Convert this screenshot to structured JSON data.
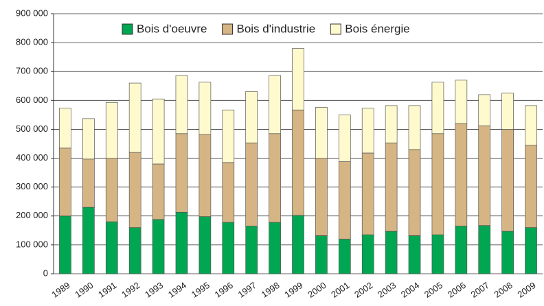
{
  "chart_data": {
    "type": "stacked_bar",
    "categories": [
      "1989",
      "1990",
      "1991",
      "1992",
      "1993",
      "1994",
      "1995",
      "1996",
      "1997",
      "1998",
      "1999",
      "2000",
      "2001",
      "2002",
      "2003",
      "2004",
      "2005",
      "2006",
      "2007",
      "2008",
      "2009"
    ],
    "series": [
      {
        "name": "Bois d'oeuvre",
        "color": "#00a651",
        "values": [
          200000,
          230000,
          180000,
          160000,
          188000,
          213000,
          198000,
          178000,
          165000,
          178000,
          202000,
          132000,
          120000,
          135000,
          147000,
          132000,
          135000,
          165000,
          167000,
          147000,
          160000
        ]
      },
      {
        "name": "Bois d'industrie",
        "color": "#d5b583",
        "values": [
          235000,
          167000,
          220000,
          260000,
          192000,
          272000,
          284000,
          207000,
          288000,
          307000,
          365000,
          268000,
          268000,
          283000,
          306000,
          298000,
          350000,
          355000,
          345000,
          353000,
          285000
        ]
      },
      {
        "name": "Bois énergie",
        "color": "#fffacd",
        "values": [
          138000,
          140000,
          193000,
          240000,
          225000,
          201000,
          181000,
          182000,
          178000,
          201000,
          213000,
          176000,
          162000,
          155000,
          129000,
          152000,
          178000,
          150000,
          108000,
          125000,
          137000
        ]
      }
    ],
    "ylim": [
      0,
      900000
    ],
    "yticks": [
      0,
      {
        "value": 100000,
        "label": "100 000"
      },
      {
        "value": 200000,
        "label": "200 000"
      },
      {
        "value": 300000,
        "label": "300 000"
      },
      {
        "value": 400000,
        "label": "400 000"
      },
      {
        "value": 500000,
        "label": "500 000"
      },
      {
        "value": 600000,
        "label": "600 000"
      },
      {
        "value": 700000,
        "label": "700 000"
      },
      {
        "value": 800000,
        "label": "800 000"
      },
      {
        "value": 900000,
        "label": "900 000"
      }
    ],
    "grid": true,
    "legend_position": "top"
  }
}
